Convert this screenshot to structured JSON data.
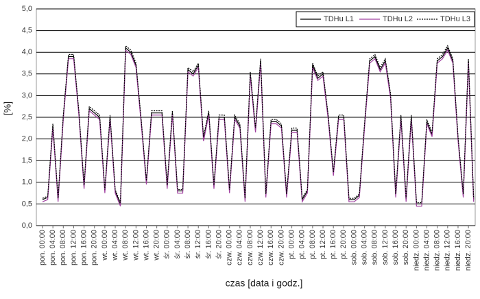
{
  "chart_data": {
    "type": "line",
    "xlabel": "czas [data i godz.]",
    "ylabel": "[%]",
    "categories": [
      "pon. 00:00",
      null,
      "pon. 04:00",
      null,
      "pon. 08:00",
      null,
      "pon. 12:00",
      null,
      "pon. 16:00",
      null,
      "pon. 20:00",
      null,
      "wt. 00:00",
      null,
      "wt. 04:00",
      null,
      "wt. 08:00",
      null,
      "wt. 12:00",
      null,
      "wt. 16:00",
      null,
      "wt. 20:00",
      null,
      "śr. 00:00",
      null,
      "śr. 04:00",
      null,
      "śr. 08:00",
      null,
      "śr. 12:00",
      null,
      "śr. 16:00",
      null,
      "śr. 20:00",
      null,
      "czw. 00:00",
      null,
      "czw. 04:00",
      null,
      "czw. 08:00",
      null,
      "czw. 12:00",
      null,
      "czw. 16:00",
      null,
      "czw. 20:00",
      null,
      "pt. 00:00",
      null,
      "pt. 04:00",
      null,
      "pt. 08:00",
      null,
      "pt. 12:00",
      null,
      "pt. 16:00",
      null,
      "pt. 20:00",
      null,
      "sob. 00:00",
      null,
      "sob. 04:00",
      null,
      "sob. 08:00",
      null,
      "sob. 12:00",
      null,
      "sob. 16:00",
      null,
      "sob. 20:00",
      null,
      "niedz. 00:00",
      null,
      "niedz. 04:00",
      null,
      "niedz. 08:00",
      null,
      "niedz. 12:00",
      null,
      "niedz. 16:00",
      null,
      "niedz. 20:00",
      null
    ],
    "series": [
      {
        "name": "TDHu L1",
        "color": "#000000",
        "style": "solid",
        "values": [
          0.6,
          0.65,
          2.3,
          0.6,
          2.5,
          3.9,
          3.9,
          2.6,
          0.9,
          2.7,
          2.6,
          2.5,
          0.8,
          2.5,
          0.8,
          0.5,
          4.1,
          4.0,
          3.7,
          2.4,
          1.0,
          2.6,
          2.6,
          2.6,
          0.9,
          2.6,
          0.8,
          0.8,
          3.6,
          3.5,
          3.7,
          2.0,
          2.6,
          0.9,
          2.5,
          2.5,
          0.8,
          2.5,
          2.3,
          0.6,
          3.5,
          2.2,
          3.8,
          0.7,
          2.4,
          2.4,
          2.3,
          0.7,
          2.2,
          2.2,
          0.6,
          0.8,
          3.7,
          3.4,
          3.5,
          2.5,
          1.2,
          2.5,
          2.5,
          0.6,
          0.6,
          0.7,
          2.3,
          3.8,
          3.9,
          3.6,
          3.8,
          3.0,
          0.7,
          2.5,
          0.6,
          2.5,
          0.5,
          0.5,
          2.4,
          2.1,
          3.8,
          3.9,
          4.1,
          3.8,
          2.0,
          0.7,
          3.8,
          0.6
        ]
      },
      {
        "name": "TDHu L2",
        "color": "#a040a0",
        "style": "solid",
        "values": [
          0.55,
          0.6,
          2.25,
          0.55,
          2.45,
          3.85,
          3.85,
          2.55,
          0.85,
          2.65,
          2.55,
          2.45,
          0.75,
          2.45,
          0.75,
          0.45,
          4.05,
          3.95,
          3.65,
          2.35,
          0.95,
          2.55,
          2.55,
          2.55,
          0.85,
          2.55,
          0.75,
          0.75,
          3.55,
          3.45,
          3.65,
          1.95,
          2.55,
          0.85,
          2.45,
          2.45,
          0.75,
          2.45,
          2.25,
          0.55,
          3.45,
          2.15,
          3.75,
          0.65,
          2.35,
          2.35,
          2.25,
          0.65,
          2.15,
          2.15,
          0.55,
          0.75,
          3.65,
          3.35,
          3.45,
          2.45,
          1.15,
          2.45,
          2.45,
          0.55,
          0.55,
          0.65,
          2.25,
          3.75,
          3.85,
          3.55,
          3.75,
          2.95,
          0.65,
          2.45,
          0.55,
          2.45,
          0.45,
          0.45,
          2.35,
          2.05,
          3.75,
          3.85,
          4.05,
          3.75,
          1.95,
          0.65,
          3.75,
          0.55
        ]
      },
      {
        "name": "TDHu L3",
        "color": "#000000",
        "style": "dashed",
        "values": [
          0.63,
          0.68,
          2.35,
          0.63,
          2.55,
          3.95,
          3.95,
          2.65,
          0.93,
          2.75,
          2.65,
          2.55,
          0.83,
          2.55,
          0.83,
          0.53,
          4.15,
          4.05,
          3.75,
          2.45,
          1.03,
          2.65,
          2.65,
          2.65,
          0.93,
          2.65,
          0.83,
          0.83,
          3.65,
          3.55,
          3.75,
          2.05,
          2.65,
          0.93,
          2.55,
          2.55,
          0.83,
          2.55,
          2.35,
          0.63,
          3.55,
          2.25,
          3.85,
          0.73,
          2.45,
          2.45,
          2.35,
          0.73,
          2.25,
          2.25,
          0.63,
          0.83,
          3.75,
          3.45,
          3.55,
          2.55,
          1.23,
          2.55,
          2.55,
          0.63,
          0.63,
          0.73,
          2.35,
          3.85,
          3.95,
          3.65,
          3.85,
          3.05,
          0.73,
          2.55,
          0.63,
          2.55,
          0.53,
          0.53,
          2.45,
          2.15,
          3.85,
          3.95,
          4.15,
          3.85,
          2.05,
          0.73,
          3.85,
          0.63
        ]
      }
    ],
    "ylim": [
      0,
      5
    ],
    "yticks": [
      {
        "value": 0,
        "label": "0,0"
      },
      {
        "value": 0.5,
        "label": "0,5"
      },
      {
        "value": 1,
        "label": "1,0"
      },
      {
        "value": 1.5,
        "label": "1,5"
      },
      {
        "value": 2,
        "label": "2,0"
      },
      {
        "value": 2.5,
        "label": "2,5"
      },
      {
        "value": 3,
        "label": "3,0"
      },
      {
        "value": 3.5,
        "label": "3,5"
      },
      {
        "value": 4,
        "label": "4,0"
      },
      {
        "value": 4.5,
        "label": "4,5"
      },
      {
        "value": 5,
        "label": "5,0"
      }
    ],
    "grid": true,
    "legend": "top-right"
  }
}
